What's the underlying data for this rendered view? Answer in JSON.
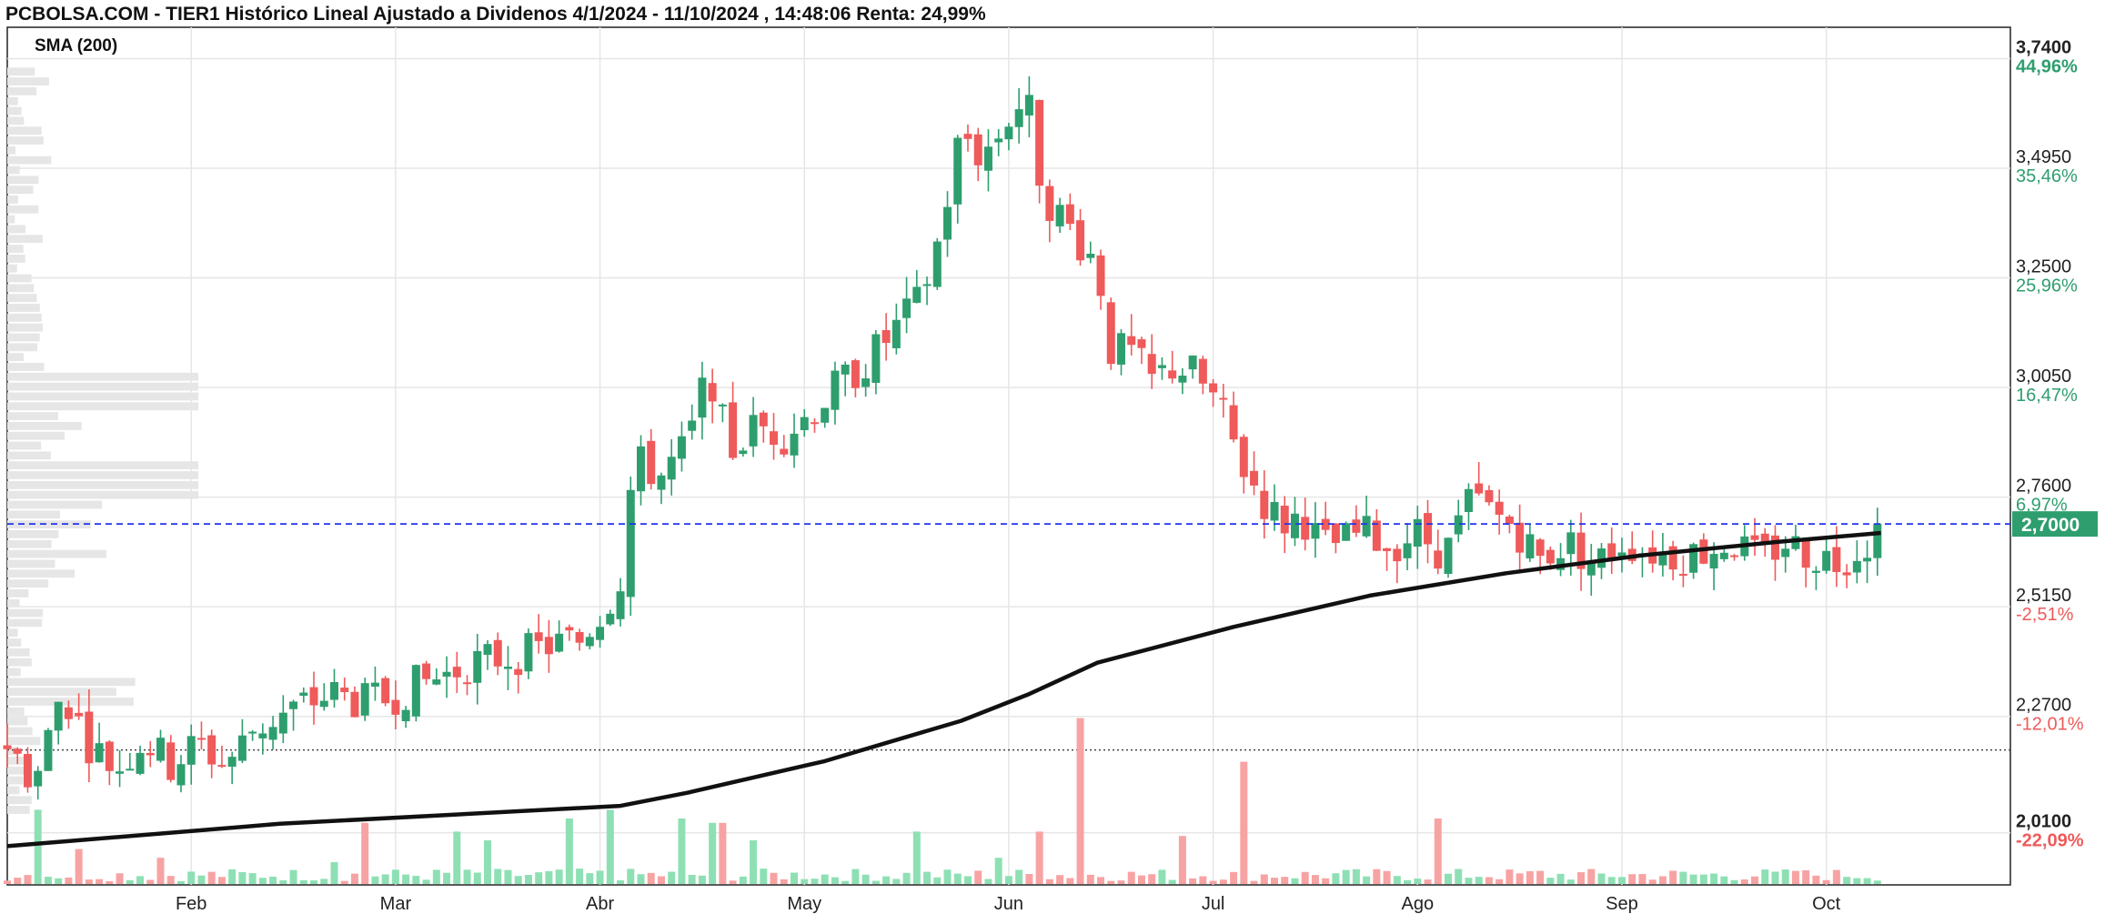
{
  "header": {
    "title": "PCBOLSA.COM - TIER1 Histórico Lineal Ajustado a Dividenos 4/1/2024 - 11/10/2024 , 14:48:06 Renta: 24,99%",
    "indicator": "SMA (200)"
  },
  "colors": {
    "up": "#2e9e6e",
    "down": "#ef5a5a",
    "up_volume": "#8ee0b4",
    "down_volume": "#f7a3a3",
    "sma": "#111111",
    "grid": "#e6e6e6",
    "last_price_line": "#2233ee",
    "last_price_badge": "#2e9e6e",
    "volume_profile": "#e6e6e6"
  },
  "chart_data": {
    "type": "candlestick",
    "ylim": [
      1.93,
      3.81
    ],
    "y_ticks": [
      {
        "value": 3.74,
        "label": "3,7400",
        "pct": "44,96%",
        "bold": true
      },
      {
        "value": 3.495,
        "label": "3,4950",
        "pct": "35,46%",
        "bold": false
      },
      {
        "value": 3.25,
        "label": "3,2500",
        "pct": "25,96%",
        "bold": false
      },
      {
        "value": 3.005,
        "label": "3,0050",
        "pct": "16,47%",
        "bold": false
      },
      {
        "value": 2.76,
        "label": "2,7600",
        "pct": "6,97%",
        "bold": false
      },
      {
        "value": 2.515,
        "label": "2,5150",
        "pct": "-2,51%",
        "bold": false
      },
      {
        "value": 2.27,
        "label": "2,2700",
        "pct": "-12,01%",
        "bold": false
      },
      {
        "value": 2.01,
        "label": "2,0100",
        "pct": "-22,09%",
        "bold": true
      }
    ],
    "x_ticks": [
      "Feb",
      "Mar",
      "Abr",
      "May",
      "Jun",
      "Jul",
      "Ago",
      "Sep",
      "Oct"
    ],
    "x_tick_positions_day": [
      27,
      57,
      87,
      117,
      147,
      177,
      207,
      237,
      267
    ],
    "last_price": {
      "value": 2.7,
      "label": "2,7000"
    },
    "reference_line": 2.195,
    "sma_200": [
      [
        0,
        1.98
      ],
      [
        40,
        2.03
      ],
      [
        90,
        2.07
      ],
      [
        100,
        2.1
      ],
      [
        120,
        2.17
      ],
      [
        140,
        2.26
      ],
      [
        150,
        2.32
      ],
      [
        160,
        2.39
      ],
      [
        180,
        2.47
      ],
      [
        200,
        2.54
      ],
      [
        220,
        2.59
      ],
      [
        240,
        2.63
      ],
      [
        260,
        2.66
      ],
      [
        275,
        2.68
      ]
    ],
    "ohlc_keypoints": [
      [
        0,
        2.21
      ],
      [
        4,
        2.12
      ],
      [
        8,
        2.33
      ],
      [
        12,
        2.21
      ],
      [
        16,
        2.15
      ],
      [
        20,
        2.22
      ],
      [
        24,
        2.16
      ],
      [
        28,
        2.21
      ],
      [
        32,
        2.16
      ],
      [
        36,
        2.24
      ],
      [
        40,
        2.27
      ],
      [
        44,
        2.3
      ],
      [
        48,
        2.32
      ],
      [
        52,
        2.3
      ],
      [
        56,
        2.31
      ],
      [
        60,
        2.34
      ],
      [
        64,
        2.36
      ],
      [
        68,
        2.39
      ],
      [
        72,
        2.4
      ],
      [
        76,
        2.41
      ],
      [
        80,
        2.43
      ],
      [
        84,
        2.44
      ],
      [
        88,
        2.52
      ],
      [
        90,
        2.58
      ],
      [
        92,
        2.84
      ],
      [
        96,
        2.81
      ],
      [
        100,
        2.88
      ],
      [
        103,
        3.05
      ],
      [
        106,
        2.86
      ],
      [
        110,
        2.92
      ],
      [
        114,
        2.9
      ],
      [
        118,
        2.95
      ],
      [
        122,
        3.01
      ],
      [
        126,
        3.06
      ],
      [
        130,
        3.13
      ],
      [
        134,
        3.2
      ],
      [
        137,
        3.35
      ],
      [
        140,
        3.58
      ],
      [
        143,
        3.52
      ],
      [
        146,
        3.58
      ],
      [
        148,
        3.64
      ],
      [
        150,
        3.62
      ],
      [
        152,
        3.44
      ],
      [
        155,
        3.38
      ],
      [
        158,
        3.32
      ],
      [
        160,
        3.28
      ],
      [
        162,
        3.09
      ],
      [
        165,
        3.08
      ],
      [
        168,
        3.02
      ],
      [
        171,
        3.05
      ],
      [
        174,
        3.04
      ],
      [
        178,
        2.96
      ],
      [
        181,
        2.84
      ],
      [
        184,
        2.76
      ],
      [
        187,
        2.7
      ],
      [
        190,
        2.72
      ],
      [
        193,
        2.65
      ],
      [
        196,
        2.66
      ],
      [
        199,
        2.68
      ],
      [
        203,
        2.65
      ],
      [
        207,
        2.68
      ],
      [
        211,
        2.63
      ],
      [
        215,
        2.76
      ],
      [
        218,
        2.72
      ],
      [
        221,
        2.7
      ],
      [
        225,
        2.62
      ],
      [
        229,
        2.66
      ],
      [
        233,
        2.61
      ],
      [
        237,
        2.66
      ],
      [
        241,
        2.64
      ],
      [
        245,
        2.63
      ],
      [
        249,
        2.64
      ],
      [
        253,
        2.66
      ],
      [
        257,
        2.62
      ],
      [
        261,
        2.66
      ],
      [
        265,
        2.63
      ],
      [
        269,
        2.62
      ],
      [
        273,
        2.66
      ],
      [
        275,
        2.7
      ]
    ],
    "volume_spikes": [
      [
        5,
        0.17
      ],
      [
        10,
        0.08
      ],
      [
        22,
        0.06
      ],
      [
        48,
        0.05
      ],
      [
        52,
        0.14
      ],
      [
        66,
        0.12
      ],
      [
        70,
        0.1
      ],
      [
        82,
        0.15
      ],
      [
        89,
        0.17
      ],
      [
        99,
        0.15
      ],
      [
        103,
        0.14
      ],
      [
        105,
        0.14
      ],
      [
        110,
        0.1
      ],
      [
        133,
        0.12
      ],
      [
        145,
        0.06
      ],
      [
        152,
        0.12
      ],
      [
        157,
        0.38
      ],
      [
        172,
        0.11
      ],
      [
        181,
        0.28
      ],
      [
        210,
        0.15
      ],
      [
        225,
        0.03
      ],
      [
        262,
        0.03
      ]
    ]
  }
}
